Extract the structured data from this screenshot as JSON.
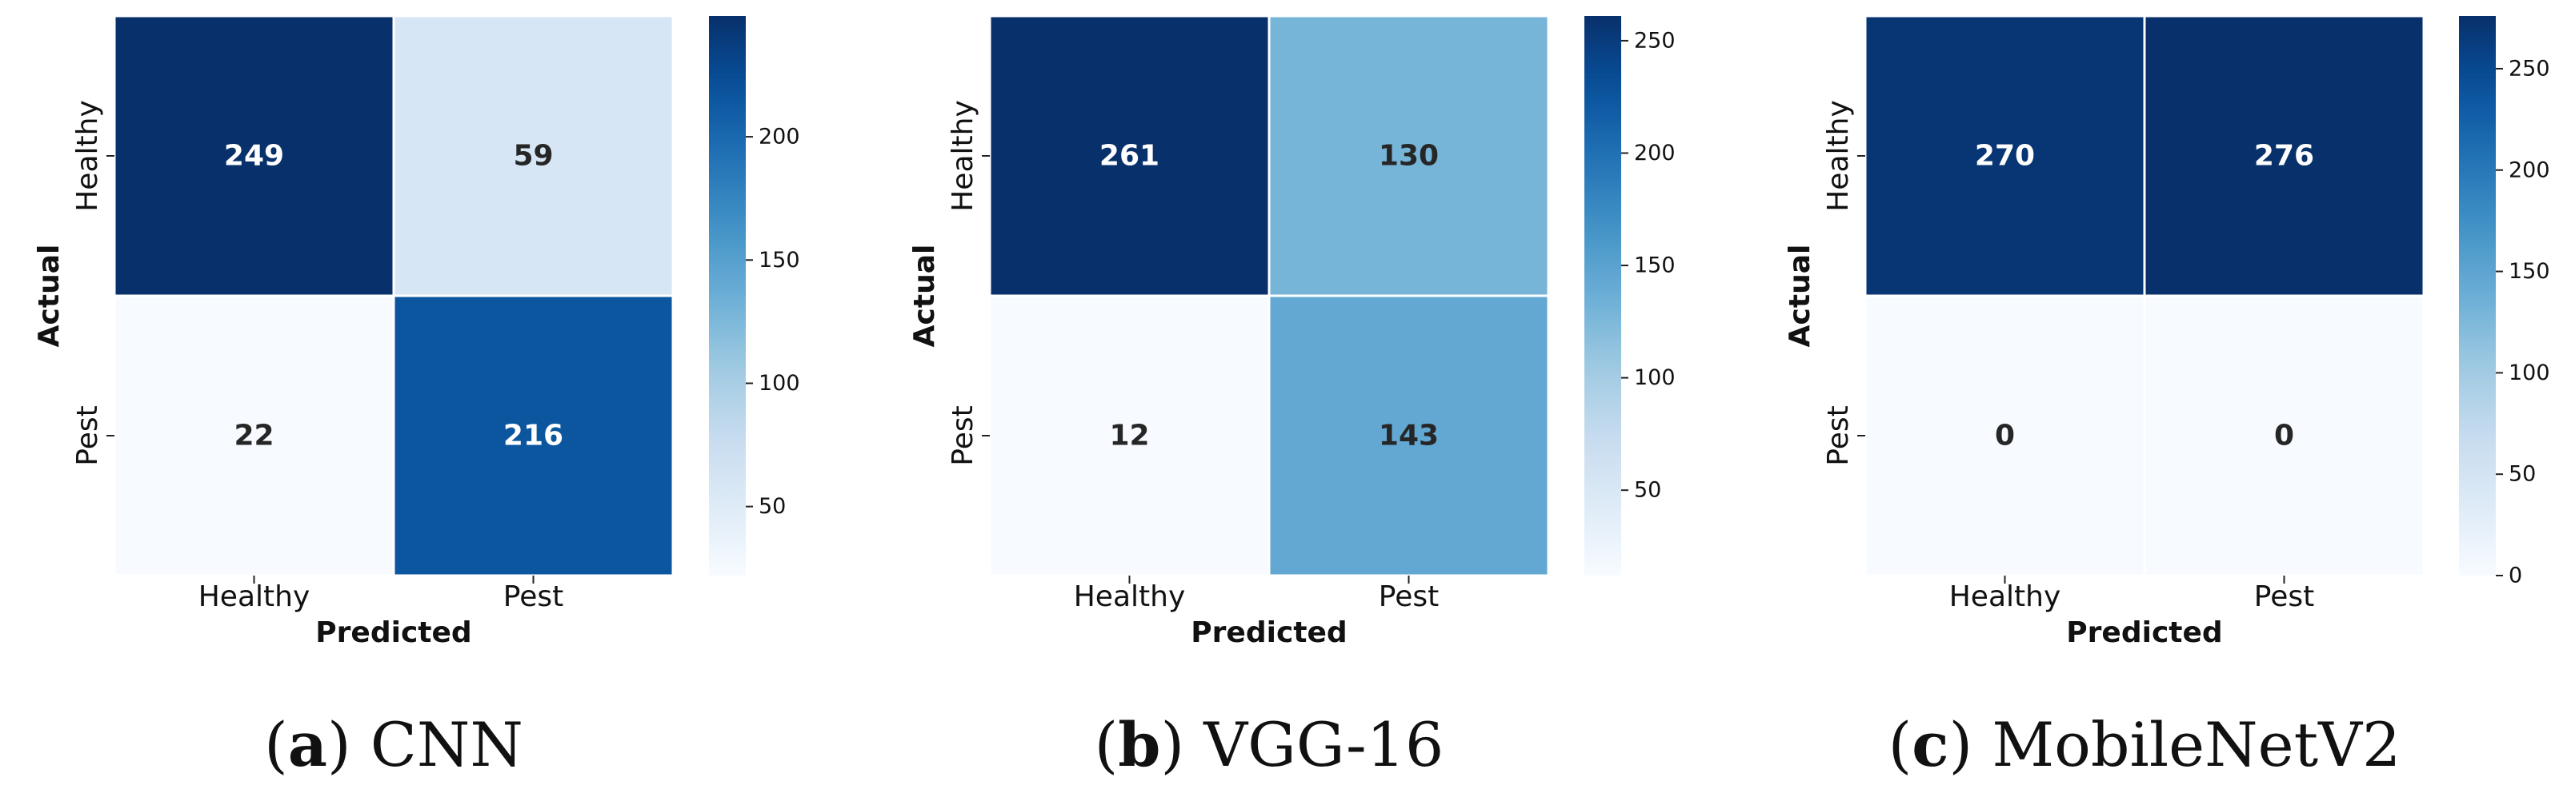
{
  "colormap": [
    "#f7fbff",
    "#deebf7",
    "#c6dbef",
    "#9ecae1",
    "#6baed6",
    "#4292c6",
    "#2171b5",
    "#08519c",
    "#08306b"
  ],
  "chart_data": [
    {
      "type": "heatmap",
      "caption_letter": "a",
      "caption_name": "CNN",
      "xlabel": "Predicted",
      "ylabel": "Actual",
      "x_categories": [
        "Healthy",
        "Pest"
      ],
      "y_categories": [
        "Healthy",
        "Pest"
      ],
      "values": [
        [
          249,
          59
        ],
        [
          22,
          216
        ]
      ],
      "color_range": [
        22,
        249
      ],
      "colorbar_ticks": [
        50,
        100,
        150,
        200
      ]
    },
    {
      "type": "heatmap",
      "caption_letter": "b",
      "caption_name": "VGG-16",
      "xlabel": "Predicted",
      "ylabel": "Actual",
      "x_categories": [
        "Healthy",
        "Pest"
      ],
      "y_categories": [
        "Healthy",
        "Pest"
      ],
      "values": [
        [
          261,
          130
        ],
        [
          12,
          143
        ]
      ],
      "color_range": [
        12,
        261
      ],
      "colorbar_ticks": [
        50,
        100,
        150,
        200,
        250
      ]
    },
    {
      "type": "heatmap",
      "caption_letter": "c",
      "caption_name": "MobileNetV2",
      "xlabel": "Predicted",
      "ylabel": "Actual",
      "x_categories": [
        "Healthy",
        "Pest"
      ],
      "y_categories": [
        "Healthy",
        "Pest"
      ],
      "values": [
        [
          270,
          276
        ],
        [
          0,
          0
        ]
      ],
      "color_range": [
        0,
        276
      ],
      "colorbar_ticks": [
        0,
        50,
        100,
        150,
        200,
        250
      ]
    }
  ]
}
